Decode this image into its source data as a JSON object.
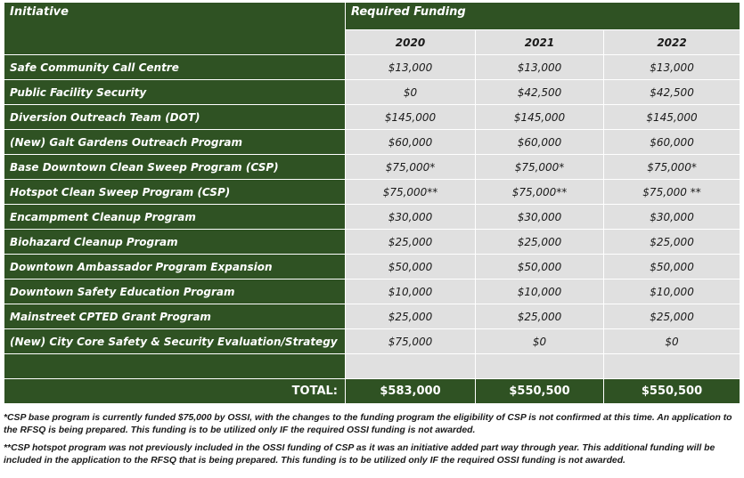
{
  "header": {
    "initiative_label": "Initiative",
    "funding_label": "Required Funding",
    "years": [
      "2020",
      "2021",
      "2022"
    ]
  },
  "rows": [
    {
      "name": "Safe Community Call Centre",
      "values": [
        "$13,000",
        "$13,000",
        "$13,000"
      ]
    },
    {
      "name": "Public Facility Security",
      "values": [
        "$0",
        "$42,500",
        "$42,500"
      ]
    },
    {
      "name": "Diversion Outreach Team (DOT)",
      "values": [
        "$145,000",
        "$145,000",
        "$145,000"
      ]
    },
    {
      "name": "(New) Galt Gardens Outreach Program",
      "values": [
        "$60,000",
        "$60,000",
        "$60,000"
      ]
    },
    {
      "name": "Base Downtown Clean Sweep Program (CSP)",
      "values": [
        "$75,000*",
        "$75,000*",
        "$75,000*"
      ]
    },
    {
      "name": "Hotspot Clean Sweep Program (CSP)",
      "values": [
        "$75,000**",
        "$75,000**",
        "$75,000 **"
      ]
    },
    {
      "name": "Encampment Cleanup Program",
      "values": [
        "$30,000",
        "$30,000",
        "$30,000"
      ]
    },
    {
      "name": "Biohazard Cleanup Program",
      "values": [
        "$25,000",
        "$25,000",
        "$25,000"
      ]
    },
    {
      "name": "Downtown Ambassador Program Expansion",
      "values": [
        "$50,000",
        "$50,000",
        "$50,000"
      ]
    },
    {
      "name": "Downtown Safety Education Program",
      "values": [
        "$10,000",
        "$10,000",
        "$10,000"
      ]
    },
    {
      "name": "Mainstreet CPTED Grant Program",
      "values": [
        "$25,000",
        "$25,000",
        "$25,000"
      ]
    },
    {
      "name": "(New) City Core Safety & Security Evaluation/Strategy",
      "values": [
        "$75,000",
        "$0",
        "$0"
      ]
    }
  ],
  "total": {
    "label": "TOTAL:",
    "values": [
      "$583,000",
      "$550,500",
      "$550,500"
    ]
  },
  "notes": {
    "note1": "*CSP base program is currently funded $75,000 by OSSI, with the changes to the funding program the eligibility of CSP is not confirmed at this time. An application to the RFSQ is being prepared. This funding is to be utilized only IF the required OSSI funding is not awarded.",
    "note2": "**CSP hotspot program was not previously included in the OSSI funding of CSP as it was an initiative added part way through year. This additional funding will be included in the application to the RFSQ that is being prepared. This funding is to be utilized only IF the required OSSI funding is not awarded."
  }
}
